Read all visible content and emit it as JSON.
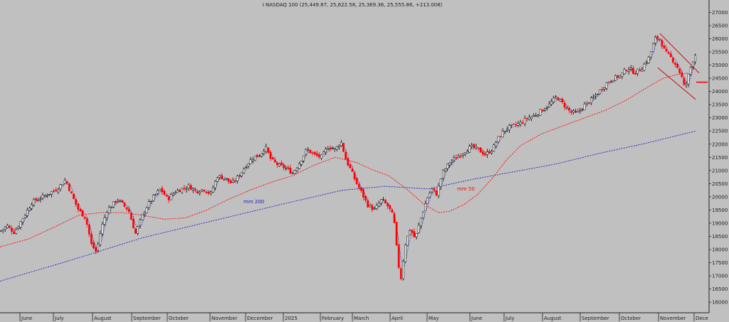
{
  "chart_data": {
    "type": "candlestick",
    "title": "I NASDAQ 100 (25,449.87, 25,622.58, 25,369.36, 25,555.86, +213.008)",
    "ylim": [
      15600,
      27200
    ],
    "y_ticks": [
      16000,
      16500,
      17000,
      17500,
      18000,
      18500,
      19000,
      19500,
      20000,
      20500,
      21000,
      21500,
      22000,
      22500,
      23000,
      23500,
      24000,
      24500,
      25000,
      25500,
      26000,
      26500,
      27000
    ],
    "x_labels": [
      "June",
      "July",
      "August",
      "September",
      "October",
      "November",
      "December",
      "2025",
      "February",
      "March",
      "April",
      "May",
      "June",
      "July",
      "August",
      "September",
      "October",
      "November",
      "Dece"
    ],
    "grid": false,
    "colors": {
      "background": "#c0c0c0",
      "up_candle": "#000000",
      "down_candle": "#ff0000",
      "ma50": "#ff0000",
      "ma200": "#2020c0",
      "trend_channel": "#c00000",
      "price_marker": "#ff0000"
    },
    "close_series": [
      [
        0,
        18700
      ],
      [
        10,
        18900
      ],
      [
        20,
        18650
      ],
      [
        30,
        19100
      ],
      [
        45,
        19800
      ],
      [
        60,
        20000
      ],
      [
        80,
        20300
      ],
      [
        92,
        20650
      ],
      [
        100,
        20100
      ],
      [
        110,
        19500
      ],
      [
        120,
        19200
      ],
      [
        128,
        18200
      ],
      [
        135,
        17900
      ],
      [
        142,
        18800
      ],
      [
        150,
        19500
      ],
      [
        165,
        19900
      ],
      [
        180,
        19500
      ],
      [
        190,
        18600
      ],
      [
        198,
        19200
      ],
      [
        205,
        19600
      ],
      [
        215,
        20000
      ],
      [
        225,
        20300
      ],
      [
        235,
        19900
      ],
      [
        245,
        20200
      ],
      [
        255,
        20300
      ],
      [
        265,
        20400
      ],
      [
        275,
        20200
      ],
      [
        285,
        20300
      ],
      [
        295,
        20100
      ],
      [
        305,
        20800
      ],
      [
        315,
        20700
      ],
      [
        325,
        20500
      ],
      [
        335,
        20800
      ],
      [
        345,
        21200
      ],
      [
        355,
        21500
      ],
      [
        365,
        21600
      ],
      [
        372,
        21900
      ],
      [
        380,
        21400
      ],
      [
        390,
        21200
      ],
      [
        400,
        21100
      ],
      [
        410,
        20900
      ],
      [
        420,
        21300
      ],
      [
        430,
        21800
      ],
      [
        440,
        21600
      ],
      [
        450,
        21500
      ],
      [
        460,
        21900
      ],
      [
        470,
        21800
      ],
      [
        478,
        22100
      ],
      [
        485,
        21400
      ],
      [
        492,
        21000
      ],
      [
        500,
        20500
      ],
      [
        508,
        20100
      ],
      [
        515,
        19700
      ],
      [
        525,
        19500
      ],
      [
        535,
        19900
      ],
      [
        545,
        19600
      ],
      [
        552,
        19200
      ],
      [
        558,
        17500
      ],
      [
        562,
        16900
      ],
      [
        568,
        18200
      ],
      [
        575,
        18800
      ],
      [
        582,
        18400
      ],
      [
        590,
        19200
      ],
      [
        598,
        19900
      ],
      [
        605,
        20300
      ],
      [
        612,
        20100
      ],
      [
        620,
        20900
      ],
      [
        630,
        21300
      ],
      [
        640,
        21500
      ],
      [
        650,
        21700
      ],
      [
        660,
        21900
      ],
      [
        670,
        21800
      ],
      [
        680,
        21600
      ],
      [
        690,
        21800
      ],
      [
        700,
        22300
      ],
      [
        710,
        22600
      ],
      [
        720,
        22700
      ],
      [
        730,
        22800
      ],
      [
        740,
        23000
      ],
      [
        750,
        23100
      ],
      [
        760,
        23300
      ],
      [
        770,
        23500
      ],
      [
        780,
        23800
      ],
      [
        790,
        23500
      ],
      [
        800,
        23200
      ],
      [
        810,
        23200
      ],
      [
        820,
        23500
      ],
      [
        830,
        23700
      ],
      [
        840,
        24000
      ],
      [
        850,
        24300
      ],
      [
        860,
        24500
      ],
      [
        870,
        24600
      ],
      [
        880,
        24900
      ],
      [
        890,
        24700
      ],
      [
        900,
        24900
      ],
      [
        910,
        25300
      ],
      [
        918,
        26000
      ],
      [
        925,
        26000
      ],
      [
        932,
        25500
      ],
      [
        940,
        25300
      ],
      [
        948,
        25000
      ],
      [
        955,
        24600
      ],
      [
        960,
        24100
      ],
      [
        965,
        24600
      ],
      [
        970,
        25100
      ],
      [
        976,
        25500
      ]
    ],
    "ma50_series": [
      [
        0,
        18100
      ],
      [
        40,
        18400
      ],
      [
        80,
        18900
      ],
      [
        110,
        19300
      ],
      [
        140,
        19400
      ],
      [
        170,
        19400
      ],
      [
        200,
        19300
      ],
      [
        230,
        19150
      ],
      [
        260,
        19200
      ],
      [
        290,
        19500
      ],
      [
        320,
        19900
      ],
      [
        350,
        20250
      ],
      [
        380,
        20550
      ],
      [
        410,
        20800
      ],
      [
        440,
        21200
      ],
      [
        470,
        21500
      ],
      [
        500,
        21300
      ],
      [
        520,
        21050
      ],
      [
        545,
        20800
      ],
      [
        570,
        20300
      ],
      [
        595,
        19700
      ],
      [
        615,
        19400
      ],
      [
        630,
        19450
      ],
      [
        650,
        19700
      ],
      [
        670,
        20100
      ],
      [
        690,
        20700
      ],
      [
        710,
        21400
      ],
      [
        730,
        21950
      ],
      [
        760,
        22400
      ],
      [
        790,
        22700
      ],
      [
        820,
        23000
      ],
      [
        850,
        23300
      ],
      [
        880,
        23700
      ],
      [
        910,
        24200
      ],
      [
        930,
        24500
      ],
      [
        950,
        24650
      ],
      [
        965,
        24700
      ]
    ],
    "ma200_series": [
      [
        0,
        16800
      ],
      [
        100,
        17600
      ],
      [
        200,
        18450
      ],
      [
        300,
        19100
      ],
      [
        400,
        19750
      ],
      [
        480,
        20250
      ],
      [
        540,
        20400
      ],
      [
        600,
        20300
      ],
      [
        660,
        20650
      ],
      [
        720,
        20950
      ],
      [
        780,
        21250
      ],
      [
        840,
        21650
      ],
      [
        900,
        22000
      ],
      [
        976,
        22500
      ]
    ],
    "annotations": [
      "mm 200",
      "mm 50"
    ]
  }
}
